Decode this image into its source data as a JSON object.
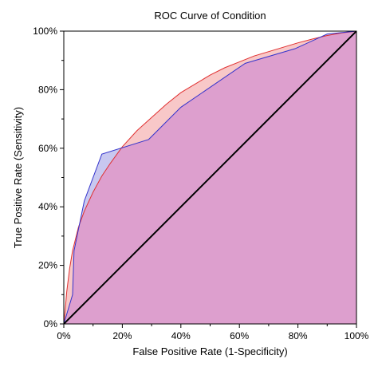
{
  "chart_data": {
    "type": "area",
    "title": "ROC Curve of Condition",
    "xlabel": "False Positive Rate (1-Specificity)",
    "ylabel": "True Positive Rate (Sensitivity)",
    "xlim": [
      0,
      100
    ],
    "ylim": [
      0,
      100
    ],
    "x_ticks": [
      "0%",
      "20%",
      "40%",
      "60%",
      "80%",
      "100%"
    ],
    "y_ticks": [
      "0%",
      "20%",
      "40%",
      "60%",
      "80%",
      "100%"
    ],
    "tick_values": [
      0,
      20,
      40,
      60,
      80,
      100
    ],
    "grid": false,
    "series": [
      {
        "kind": "empirical",
        "line_color": "#3333cc",
        "fill_color": "#c8c8f0",
        "x": [
          0,
          3,
          3.5,
          7,
          13,
          29,
          40,
          62,
          79,
          90,
          100
        ],
        "y": [
          0,
          10,
          25,
          42,
          58,
          63,
          74,
          89,
          94,
          99,
          100
        ]
      },
      {
        "kind": "fitted",
        "line_color": "#e03030",
        "fill_color": "#f8c8c8",
        "x": [
          0,
          0.5,
          1,
          2,
          3,
          5,
          7,
          10,
          13,
          16,
          20,
          25,
          30,
          35,
          40,
          45,
          50,
          55,
          60,
          65,
          70,
          75,
          80,
          85,
          90,
          95,
          100
        ],
        "y": [
          0,
          5,
          11,
          19,
          25,
          33,
          38.5,
          45,
          50.5,
          55,
          60.5,
          66,
          70.5,
          75,
          79,
          82,
          85,
          87.5,
          89.5,
          91.5,
          93,
          94.5,
          96,
          97.3,
          98.5,
          99.4,
          100
        ]
      },
      {
        "kind": "chance-diagonal",
        "line_color": "#000000",
        "x": [
          0,
          100
        ],
        "y": [
          0,
          100
        ]
      }
    ],
    "overlap_fill_color": "#dd9fce"
  }
}
